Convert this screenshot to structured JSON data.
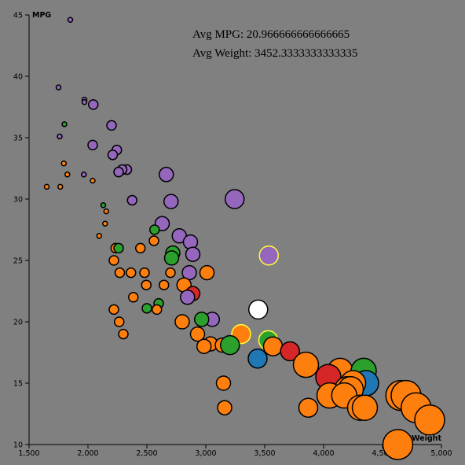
{
  "chart_data": {
    "type": "scatter",
    "title": "",
    "xlabel": "Weight",
    "ylabel": "MPG",
    "xlim": [
      1500,
      5000
    ],
    "ylim": [
      10,
      45
    ],
    "x_ticks": [
      1500,
      2000,
      2500,
      3000,
      3500,
      4000,
      4500,
      5000
    ],
    "x_tick_labels": [
      "1,500",
      "2,000",
      "2,500",
      "3,000",
      "3,500",
      "4,000",
      "4,500",
      "5,000"
    ],
    "y_ticks": [
      10,
      15,
      20,
      25,
      30,
      35,
      40,
      45
    ],
    "y_tick_labels": [
      "10",
      "15",
      "20",
      "25",
      "30",
      "35",
      "40",
      "45"
    ],
    "grid": false,
    "legend": "none",
    "colors": {
      "blue": "#1f77b4",
      "orange": "#ff7f0e",
      "green": "#2ca02c",
      "red": "#d62728",
      "purple": "#9467bd",
      "white": "#ffffff",
      "highlight_stroke": "#ffff33"
    },
    "points": [
      {
        "x": 1850,
        "y": 44.6,
        "c": "purple",
        "s": 1
      },
      {
        "x": 1750,
        "y": 39.1,
        "c": "purple",
        "s": 1
      },
      {
        "x": 1970,
        "y": 38.1,
        "c": "purple",
        "s": 1
      },
      {
        "x": 1970,
        "y": 37.9,
        "c": "purple",
        "s": 1
      },
      {
        "x": 2045,
        "y": 37.7,
        "c": "purple",
        "s": 2
      },
      {
        "x": 1800,
        "y": 36.1,
        "c": "green",
        "s": 1
      },
      {
        "x": 2200,
        "y": 36.0,
        "c": "purple",
        "s": 2
      },
      {
        "x": 1760,
        "y": 35.1,
        "c": "purple",
        "s": 1
      },
      {
        "x": 2040,
        "y": 34.4,
        "c": "purple",
        "s": 2
      },
      {
        "x": 2245,
        "y": 34.0,
        "c": "purple",
        "s": 2
      },
      {
        "x": 2210,
        "y": 33.6,
        "c": "purple",
        "s": 2
      },
      {
        "x": 1795,
        "y": 32.9,
        "c": "orange",
        "s": 1
      },
      {
        "x": 2330,
        "y": 32.4,
        "c": "purple",
        "s": 2
      },
      {
        "x": 2290,
        "y": 32.4,
        "c": "purple",
        "s": 2
      },
      {
        "x": 2260,
        "y": 32.2,
        "c": "purple",
        "s": 2
      },
      {
        "x": 1825,
        "y": 32.0,
        "c": "orange",
        "s": 1
      },
      {
        "x": 1965,
        "y": 32.0,
        "c": "purple",
        "s": 1
      },
      {
        "x": 2665,
        "y": 32.0,
        "c": "purple",
        "s": 3
      },
      {
        "x": 2040,
        "y": 31.5,
        "c": "orange",
        "s": 1
      },
      {
        "x": 1650,
        "y": 31.0,
        "c": "orange",
        "s": 1
      },
      {
        "x": 1765,
        "y": 31.0,
        "c": "orange",
        "s": 1
      },
      {
        "x": 3245,
        "y": 30.0,
        "c": "purple",
        "s": 4
      },
      {
        "x": 2375,
        "y": 29.9,
        "c": "purple",
        "s": 2
      },
      {
        "x": 2705,
        "y": 29.8,
        "c": "purple",
        "s": 3
      },
      {
        "x": 2130,
        "y": 29.5,
        "c": "green",
        "s": 1
      },
      {
        "x": 2155,
        "y": 29.0,
        "c": "orange",
        "s": 1
      },
      {
        "x": 2630,
        "y": 28.0,
        "c": "purple",
        "s": 3
      },
      {
        "x": 2145,
        "y": 28.0,
        "c": "orange",
        "s": 1
      },
      {
        "x": 2565,
        "y": 27.5,
        "c": "green",
        "s": 2
      },
      {
        "x": 2775,
        "y": 27.0,
        "c": "purple",
        "s": 3
      },
      {
        "x": 2095,
        "y": 27.0,
        "c": "orange",
        "s": 1
      },
      {
        "x": 2560,
        "y": 26.6,
        "c": "orange",
        "s": 2
      },
      {
        "x": 2870,
        "y": 26.5,
        "c": "purple",
        "s": 3
      },
      {
        "x": 2235,
        "y": 26.0,
        "c": "orange",
        "s": 2
      },
      {
        "x": 2260,
        "y": 26.0,
        "c": "green",
        "s": 2
      },
      {
        "x": 2445,
        "y": 26.0,
        "c": "orange",
        "s": 2
      },
      {
        "x": 2720,
        "y": 25.6,
        "c": "green",
        "s": 3
      },
      {
        "x": 2890,
        "y": 25.5,
        "c": "purple",
        "s": 3
      },
      {
        "x": 3535,
        "y": 25.4,
        "c": "purple",
        "s": 4,
        "hl": true
      },
      {
        "x": 2710,
        "y": 25.2,
        "c": "green",
        "s": 3
      },
      {
        "x": 2220,
        "y": 25.0,
        "c": "orange",
        "s": 2
      },
      {
        "x": 2270,
        "y": 24.0,
        "c": "orange",
        "s": 2
      },
      {
        "x": 2365,
        "y": 24.0,
        "c": "orange",
        "s": 2
      },
      {
        "x": 2480,
        "y": 24.0,
        "c": "orange",
        "s": 2
      },
      {
        "x": 2700,
        "y": 24.0,
        "c": "orange",
        "s": 2
      },
      {
        "x": 2860,
        "y": 24.0,
        "c": "purple",
        "s": 3
      },
      {
        "x": 3010,
        "y": 24.0,
        "c": "orange",
        "s": 3
      },
      {
        "x": 2495,
        "y": 23.0,
        "c": "orange",
        "s": 2
      },
      {
        "x": 2645,
        "y": 23.0,
        "c": "orange",
        "s": 2
      },
      {
        "x": 2815,
        "y": 23.0,
        "c": "orange",
        "s": 3
      },
      {
        "x": 2890,
        "y": 22.3,
        "c": "red",
        "s": 3
      },
      {
        "x": 2385,
        "y": 22.0,
        "c": "orange",
        "s": 2
      },
      {
        "x": 2845,
        "y": 22.0,
        "c": "purple",
        "s": 3
      },
      {
        "x": 2600,
        "y": 21.5,
        "c": "green",
        "s": 2
      },
      {
        "x": 2500,
        "y": 21.1,
        "c": "green",
        "s": 2
      },
      {
        "x": 2585,
        "y": 21.0,
        "c": "orange",
        "s": 2
      },
      {
        "x": 2220,
        "y": 21.0,
        "c": "orange",
        "s": 2
      },
      {
        "x": 3445,
        "y": 21.0,
        "c": "white",
        "s": 4
      },
      {
        "x": 3055,
        "y": 20.2,
        "c": "purple",
        "s": 3
      },
      {
        "x": 2965,
        "y": 20.2,
        "c": "green",
        "s": 3
      },
      {
        "x": 2800,
        "y": 20.0,
        "c": "orange",
        "s": 3
      },
      {
        "x": 2265,
        "y": 20.0,
        "c": "orange",
        "s": 2
      },
      {
        "x": 2930,
        "y": 19.0,
        "c": "orange",
        "s": 3
      },
      {
        "x": 3300,
        "y": 19.0,
        "c": "orange",
        "s": 4,
        "hl": true
      },
      {
        "x": 2300,
        "y": 19.0,
        "c": "orange",
        "s": 2
      },
      {
        "x": 3530,
        "y": 18.5,
        "c": "green",
        "s": 4,
        "hl": true
      },
      {
        "x": 3040,
        "y": 18.2,
        "c": "orange",
        "s": 3
      },
      {
        "x": 3140,
        "y": 18.1,
        "c": "orange",
        "s": 3
      },
      {
        "x": 3205,
        "y": 18.1,
        "c": "green",
        "s": 4
      },
      {
        "x": 2985,
        "y": 18.0,
        "c": "orange",
        "s": 3
      },
      {
        "x": 3570,
        "y": 18.0,
        "c": "orange",
        "s": 4
      },
      {
        "x": 3715,
        "y": 17.6,
        "c": "red",
        "s": 4
      },
      {
        "x": 3440,
        "y": 17.0,
        "c": "blue",
        "s": 4
      },
      {
        "x": 3850,
        "y": 16.5,
        "c": "orange",
        "s": 5
      },
      {
        "x": 4140,
        "y": 16.0,
        "c": "orange",
        "s": 5
      },
      {
        "x": 4340,
        "y": 16.0,
        "c": "green",
        "s": 5
      },
      {
        "x": 4040,
        "y": 15.5,
        "c": "red",
        "s": 5
      },
      {
        "x": 4360,
        "y": 15.0,
        "c": "blue",
        "s": 5
      },
      {
        "x": 4250,
        "y": 15.0,
        "c": "orange",
        "s": 5
      },
      {
        "x": 3150,
        "y": 15.0,
        "c": "orange",
        "s": 3
      },
      {
        "x": 4200,
        "y": 14.5,
        "c": "orange",
        "s": 5
      },
      {
        "x": 4230,
        "y": 14.5,
        "c": "orange",
        "s": 5
      },
      {
        "x": 4050,
        "y": 14.0,
        "c": "orange",
        "s": 5
      },
      {
        "x": 4175,
        "y": 14.0,
        "c": "orange",
        "s": 5
      },
      {
        "x": 4655,
        "y": 14.0,
        "c": "orange",
        "s": 6
      },
      {
        "x": 4700,
        "y": 14.0,
        "c": "orange",
        "s": 6
      },
      {
        "x": 4310,
        "y": 13.0,
        "c": "orange",
        "s": 5
      },
      {
        "x": 4350,
        "y": 13.0,
        "c": "orange",
        "s": 5
      },
      {
        "x": 3870,
        "y": 13.0,
        "c": "orange",
        "s": 4
      },
      {
        "x": 3160,
        "y": 13.0,
        "c": "orange",
        "s": 3
      },
      {
        "x": 4785,
        "y": 13.0,
        "c": "orange",
        "s": 6
      },
      {
        "x": 4900,
        "y": 12.0,
        "c": "orange",
        "s": 6
      },
      {
        "x": 4630,
        "y": 10.0,
        "c": "orange",
        "s": 6
      }
    ]
  },
  "annotations": {
    "avg_mpg": "Avg MPG: 20.966666666666665",
    "avg_weight": "Avg Weight: 3452.3333333333335"
  }
}
